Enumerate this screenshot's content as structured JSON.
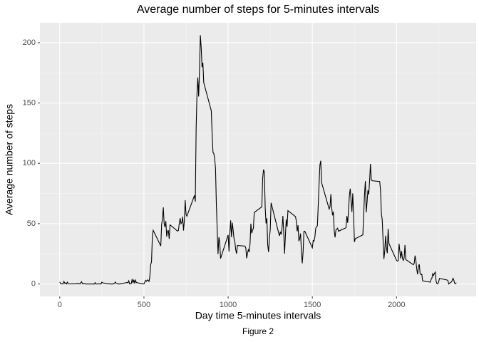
{
  "chart_data": {
    "type": "line",
    "title": "Average number of steps for 5-minutes intervals",
    "x_label": "Day time 5-minutes intervals",
    "y_label": "Average number of steps",
    "caption": "Figure 2",
    "color": "#000000",
    "xlim": [
      -117.75,
      2472.75
    ],
    "ylim": [
      -10.31,
      216.48
    ],
    "xticks": [
      0,
      500,
      1000,
      1500,
      2000
    ],
    "yticks": [
      0,
      50,
      100,
      150,
      200
    ],
    "x_minor_grid": [
      250,
      750,
      1250,
      1750,
      2250
    ],
    "y_minor_grid": [
      25,
      75,
      125,
      175
    ],
    "grid": true,
    "x": [
      0,
      5,
      10,
      15,
      20,
      25,
      30,
      35,
      40,
      45,
      50,
      55,
      100,
      105,
      110,
      115,
      120,
      125,
      130,
      135,
      140,
      145,
      150,
      155,
      200,
      205,
      210,
      215,
      220,
      225,
      230,
      235,
      240,
      245,
      250,
      255,
      300,
      305,
      310,
      315,
      320,
      325,
      330,
      335,
      340,
      345,
      350,
      355,
      400,
      405,
      410,
      415,
      420,
      425,
      430,
      435,
      440,
      445,
      450,
      455,
      500,
      505,
      510,
      515,
      520,
      525,
      530,
      535,
      540,
      545,
      550,
      555,
      600,
      605,
      610,
      615,
      620,
      625,
      630,
      635,
      640,
      645,
      650,
      655,
      700,
      705,
      710,
      715,
      720,
      725,
      730,
      735,
      740,
      745,
      750,
      755,
      800,
      805,
      810,
      815,
      820,
      825,
      830,
      835,
      840,
      845,
      850,
      855,
      900,
      905,
      910,
      915,
      920,
      925,
      930,
      935,
      940,
      945,
      950,
      955,
      1000,
      1005,
      1010,
      1015,
      1020,
      1025,
      1030,
      1035,
      1040,
      1045,
      1050,
      1055,
      1100,
      1105,
      1110,
      1115,
      1120,
      1125,
      1130,
      1135,
      1140,
      1145,
      1150,
      1155,
      1200,
      1205,
      1210,
      1215,
      1220,
      1225,
      1230,
      1235,
      1240,
      1245,
      1250,
      1255,
      1300,
      1305,
      1310,
      1315,
      1320,
      1325,
      1330,
      1335,
      1340,
      1345,
      1350,
      1355,
      1400,
      1405,
      1410,
      1415,
      1420,
      1425,
      1430,
      1435,
      1440,
      1445,
      1450,
      1455,
      1500,
      1505,
      1510,
      1515,
      1520,
      1525,
      1530,
      1535,
      1540,
      1545,
      1550,
      1555,
      1600,
      1605,
      1610,
      1615,
      1620,
      1625,
      1630,
      1635,
      1640,
      1645,
      1650,
      1655,
      1700,
      1705,
      1710,
      1715,
      1720,
      1725,
      1730,
      1735,
      1740,
      1745,
      1750,
      1755,
      1800,
      1805,
      1810,
      1815,
      1820,
      1825,
      1830,
      1835,
      1840,
      1845,
      1850,
      1855,
      1900,
      1905,
      1910,
      1915,
      1920,
      1925,
      1930,
      1935,
      1940,
      1945,
      1950,
      1955,
      2000,
      2005,
      2010,
      2015,
      2020,
      2025,
      2030,
      2035,
      2040,
      2045,
      2050,
      2055,
      2100,
      2105,
      2110,
      2115,
      2120,
      2125,
      2130,
      2135,
      2140,
      2145,
      2150,
      2155,
      2200,
      2205,
      2210,
      2215,
      2220,
      2225,
      2230,
      2235,
      2240,
      2245,
      2250,
      2255,
      2300,
      2305,
      2310,
      2315,
      2320,
      2325,
      2330,
      2335,
      2340,
      2345,
      2350,
      2355
    ],
    "values": [
      1.7,
      0.3,
      0.1,
      0.2,
      0.1,
      2.1,
      0.5,
      0.9,
      0,
      1.5,
      0.3,
      0.1,
      0.3,
      0.7,
      0.2,
      0.3,
      0,
      1.1,
      1.8,
      0.2,
      0.2,
      0.4,
      0.3,
      0,
      0,
      0,
      1.1,
      0,
      0,
      0.1,
      0,
      0.2,
      0,
      0,
      1.5,
      0.9,
      0,
      0,
      0,
      0,
      0.2,
      0.6,
      1.6,
      0.6,
      0.5,
      0.1,
      0,
      0,
      1.2,
      0.9,
      2.6,
      0,
      0.3,
      0.4,
      4.1,
      0.7,
      3.5,
      0.8,
      3.1,
      1.1,
      0,
      1.6,
      3,
      2.2,
      3.3,
      3,
      2.1,
      6.1,
      16,
      18.3,
      39.5,
      44.5,
      31.5,
      49.3,
      53.8,
      63.5,
      50,
      47.1,
      52.2,
      39.3,
      44,
      44.2,
      37.4,
      49,
      43.8,
      44.4,
      50.5,
      54.5,
      49.9,
      51,
      55.7,
      44.3,
      52.3,
      69.5,
      57.8,
      56.2,
      73.4,
      68.2,
      129.4,
      157.5,
      171.2,
      155.4,
      177.3,
      206.2,
      195.9,
      179.6,
      183.4,
      167,
      143.5,
      124,
      109.1,
      108.1,
      103.7,
      95.9,
      66.2,
      45.2,
      24.8,
      38.8,
      35,
      21.1,
      40.6,
      26.9,
      42.4,
      52.7,
      38.9,
      50.8,
      44.3,
      37.4,
      34.7,
      28.3,
      25.1,
      31.9,
      31.4,
      29.7,
      21.3,
      25.5,
      28.4,
      26.5,
      33.4,
      50,
      42,
      44.6,
      46,
      59.3,
      63.9,
      87.7,
      94.8,
      92.8,
      63.4,
      50.2,
      54.5,
      32.4,
      26.5,
      37.7,
      45.1,
      67.3,
      42.3,
      39.9,
      43.3,
      40.98,
      46.2,
      56.4,
      42.8,
      25.1,
      39.97,
      53.5,
      47.3,
      60.8,
      55.8,
      51.96,
      43.6,
      48.7,
      35.5,
      37.5,
      41.8,
      27.5,
      17.1,
      26.1,
      43.6,
      43.8,
      30,
      36.1,
      35.5,
      38.8,
      45.96,
      47.8,
      48.1,
      65.3,
      82.9,
      98.7,
      102.1,
      83.96,
      62.1,
      64.1,
      74.5,
      63.2,
      56.9,
      59.8,
      43.9,
      38.6,
      44.7,
      45.5,
      46.2,
      43.7,
      46.6,
      56.3,
      50.7,
      61.2,
      73.4,
      79,
      68.9,
      59.7,
      75.1,
      56.5,
      34.8,
      37.5,
      40.7,
      58,
      74.7,
      85.3,
      59.3,
      67.8,
      77.7,
      74.2,
      85.3,
      99.5,
      86.6,
      85.6,
      84.9,
      77.8,
      58,
      53.4,
      36.3,
      20.7,
      27.4,
      40,
      30.2,
      25.5,
      45.7,
      33.5,
      19.6,
      19,
      19.3,
      33.3,
      26.8,
      21.2,
      27.3,
      21.3,
      19.5,
      21.3,
      32.3,
      20.2,
      15.9,
      17.2,
      23.5,
      19.2,
      12.5,
      8,
      14.7,
      16.3,
      8.7,
      7.8,
      8.1,
      2.6,
      1.5,
      3.7,
      4.8,
      8.5,
      7.1,
      8.7,
      9.8,
      2.2,
      0.3,
      0.1,
      1.6,
      4.6,
      3.3,
      2.8,
      0,
      0.8,
      1,
      1.6,
      2.6,
      4.7,
      3.3,
      0.6,
      0.2,
      1.1
    ]
  }
}
